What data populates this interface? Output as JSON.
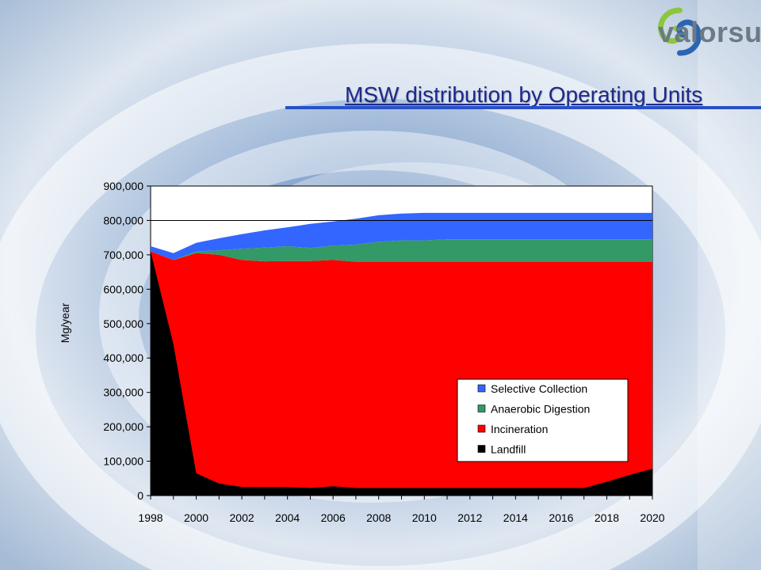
{
  "header": {
    "title": "MSW distribution by Operating Units",
    "logo_text": "valorsul",
    "title_color": "#1c2a8c",
    "rule_color": "#2750c8"
  },
  "chart_data": {
    "type": "area",
    "stacked": true,
    "title": "",
    "xlabel": "",
    "ylabel": "Mg/year",
    "xlim": [
      1998,
      2020
    ],
    "ylim": [
      0,
      900000
    ],
    "yticks": [
      0,
      100000,
      200000,
      300000,
      400000,
      500000,
      600000,
      700000,
      800000,
      900000
    ],
    "ytick_labels": [
      "0",
      "100,000",
      "200,000",
      "300,000",
      "400,000",
      "500,000",
      "600,000",
      "700,000",
      "800,000",
      "900,000"
    ],
    "xtick_labels": [
      "1998",
      "2000",
      "2002",
      "2004",
      "2006",
      "2008",
      "2010",
      "2012",
      "2014",
      "2016",
      "2018",
      "2020"
    ],
    "legend_position": "bottom-right",
    "gridlines": [
      800000
    ],
    "x": [
      1998,
      1999,
      2000,
      2001,
      2002,
      2003,
      2004,
      2005,
      2006,
      2007,
      2008,
      2009,
      2010,
      2011,
      2012,
      2013,
      2014,
      2015,
      2016,
      2017,
      2018,
      2019,
      2020
    ],
    "series": [
      {
        "name": "Landfill",
        "color": "#000000",
        "values": [
          710000,
          440000,
          65000,
          35000,
          25000,
          25000,
          25000,
          22000,
          27000,
          22000,
          22000,
          22000,
          22000,
          22000,
          22000,
          22000,
          22000,
          22000,
          22000,
          22000,
          40000,
          60000,
          78000
        ]
      },
      {
        "name": "Incineration",
        "color": "#ff0000",
        "values": [
          0,
          245000,
          640000,
          665000,
          660000,
          656000,
          657000,
          660000,
          658000,
          658000,
          658000,
          658000,
          658000,
          658000,
          658000,
          658000,
          658000,
          658000,
          658000,
          658000,
          640000,
          620000,
          602000
        ]
      },
      {
        "name": "Anaerobic Digestion",
        "color": "#339966",
        "values": [
          0,
          0,
          5000,
          13000,
          33000,
          40000,
          43000,
          38000,
          42000,
          50000,
          58000,
          62000,
          62000,
          65000,
          65000,
          65000,
          65000,
          65000,
          65000,
          65000,
          65000,
          65000,
          65000
        ]
      },
      {
        "name": "Selective Collection",
        "color": "#3366ff",
        "values": [
          15000,
          20000,
          25000,
          35000,
          42000,
          50000,
          55000,
          70000,
          70000,
          75000,
          77000,
          78000,
          80000,
          77000,
          77000,
          77000,
          77000,
          77000,
          77000,
          77000,
          77000,
          77000,
          77000
        ]
      }
    ]
  }
}
